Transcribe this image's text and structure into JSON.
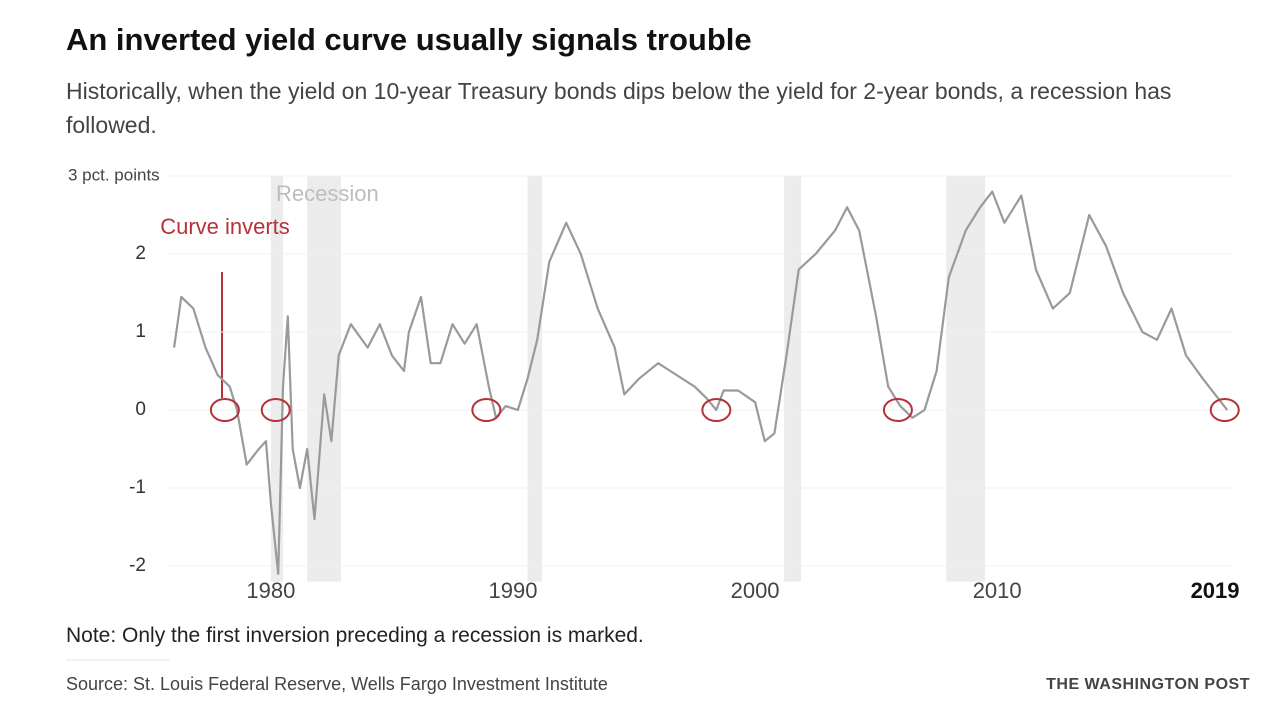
{
  "chart_data": {
    "type": "line",
    "title": "An inverted yield curve usually signals trouble",
    "subtitle": "Historically, when the yield on 10-year Treasury bonds dips below the yield for 2-year bonds, a recession has followed.",
    "annotation": "Curve inverts",
    "recession_label": "Recession",
    "note": "Note: Only the first inversion preceding a recession is marked.",
    "source": "Source: St. Louis Federal Reserve, Wells Fargo Investment Institute",
    "credit": "THE WASHINGTON POST",
    "xlim": [
      1975.75,
      2019.7
    ],
    "ylim": [
      -2.2,
      3
    ],
    "xticks": [
      1980,
      1990,
      2000,
      2010,
      2019
    ],
    "yticks": [
      {
        "value": 3,
        "label": "3 pct. points"
      },
      2,
      1,
      0,
      -1,
      -2
    ],
    "grid": true,
    "line_color": "#9a9a9a",
    "marker_color": "#b5323a",
    "recession_color": "#ececec",
    "recessions": [
      [
        1980.0,
        1980.5
      ],
      [
        1981.5,
        1982.9
      ],
      [
        1990.6,
        1991.2
      ],
      [
        2001.2,
        2001.9
      ],
      [
        2007.9,
        2009.5
      ]
    ],
    "inversions": [
      1978.1,
      1980.2,
      1988.9,
      1998.4,
      2005.9,
      2019.4
    ],
    "x": [
      1976.0,
      1976.3,
      1976.8,
      1977.3,
      1977.8,
      1978.3,
      1978.6,
      1979.0,
      1979.5,
      1979.8,
      1980.0,
      1980.3,
      1980.5,
      1980.7,
      1980.9,
      1981.2,
      1981.5,
      1981.8,
      1982.2,
      1982.5,
      1982.8,
      1983.3,
      1984.0,
      1984.5,
      1985.0,
      1985.5,
      1985.7,
      1986.2,
      1986.6,
      1987.0,
      1987.5,
      1988.0,
      1988.5,
      1989.0,
      1989.3,
      1989.7,
      1990.2,
      1990.6,
      1991.0,
      1991.5,
      1992.2,
      1992.8,
      1993.5,
      1994.2,
      1994.6,
      1995.2,
      1996.0,
      1996.5,
      1997.5,
      1998.0,
      1998.4,
      1998.7,
      1999.3,
      2000.0,
      2000.4,
      2000.8,
      2001.3,
      2001.8,
      2002.5,
      2003.3,
      2003.8,
      2004.3,
      2005.0,
      2005.5,
      2006.0,
      2006.5,
      2007.0,
      2007.5,
      2008.0,
      2008.7,
      2009.3,
      2009.8,
      2010.3,
      2011.0,
      2011.6,
      2012.3,
      2013.0,
      2013.8,
      2014.5,
      2015.2,
      2016.0,
      2016.6,
      2017.2,
      2017.8,
      2018.5,
      2019.0,
      2019.5
    ],
    "values": [
      0.8,
      1.45,
      1.3,
      0.8,
      0.45,
      0.3,
      0.0,
      -0.7,
      -0.5,
      -0.4,
      -1.2,
      -2.1,
      0.3,
      1.2,
      -0.5,
      -1.0,
      -0.5,
      -1.4,
      0.2,
      -0.4,
      0.7,
      1.1,
      0.8,
      1.1,
      0.7,
      0.5,
      1.0,
      1.45,
      0.6,
      0.6,
      1.1,
      0.85,
      1.1,
      0.3,
      -0.1,
      0.05,
      0.0,
      0.4,
      0.9,
      1.9,
      2.4,
      2.0,
      1.3,
      0.8,
      0.2,
      0.4,
      0.6,
      0.5,
      0.3,
      0.15,
      0.0,
      0.25,
      0.25,
      0.1,
      -0.4,
      -0.3,
      0.7,
      1.8,
      2.0,
      2.3,
      2.6,
      2.3,
      1.2,
      0.3,
      0.05,
      -0.1,
      0.0,
      0.5,
      1.7,
      2.3,
      2.6,
      2.8,
      2.4,
      2.75,
      1.8,
      1.3,
      1.5,
      2.5,
      2.1,
      1.5,
      1.0,
      0.9,
      1.3,
      0.7,
      0.4,
      0.2,
      0.0
    ]
  }
}
